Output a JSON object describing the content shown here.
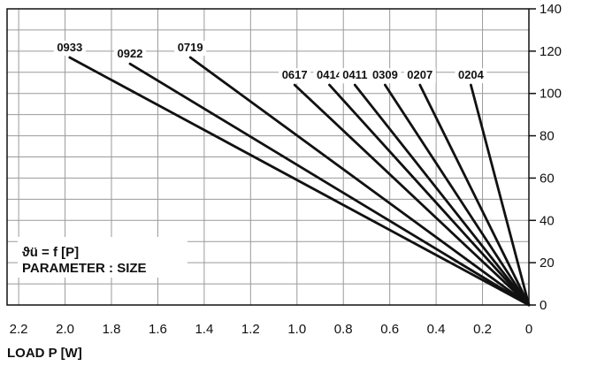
{
  "chart_data": {
    "type": "line",
    "xlabel": "LOAD  P [W]",
    "ylabel": "",
    "xlim": [
      2.25,
      0
    ],
    "ylim": [
      0,
      140
    ],
    "x_ticks": [
      "2.2",
      "2.0",
      "1.8",
      "1.6",
      "1.4",
      "1.2",
      "1.0",
      "0.8",
      "0.6",
      "0.4",
      "0.2",
      "0"
    ],
    "y_ticks": [
      "0",
      "20",
      "40",
      "60",
      "80",
      "100",
      "120",
      "140"
    ],
    "grid": true,
    "annotation": {
      "line1": "ϑü = f [P]",
      "line2": "PARAMETER : SIZE"
    },
    "series": [
      {
        "name": "0933",
        "points": [
          [
            0,
            0
          ],
          [
            1.98,
            117
          ]
        ]
      },
      {
        "name": "0922",
        "points": [
          [
            0,
            0
          ],
          [
            1.72,
            114
          ]
        ]
      },
      {
        "name": "0719",
        "points": [
          [
            0,
            0
          ],
          [
            1.46,
            117
          ]
        ]
      },
      {
        "name": "0617",
        "points": [
          [
            0,
            0
          ],
          [
            1.01,
            104
          ]
        ]
      },
      {
        "name": "0414",
        "points": [
          [
            0,
            0
          ],
          [
            0.86,
            104
          ]
        ]
      },
      {
        "name": "0411",
        "points": [
          [
            0,
            0
          ],
          [
            0.75,
            104
          ]
        ]
      },
      {
        "name": "0309",
        "points": [
          [
            0,
            0
          ],
          [
            0.62,
            104
          ]
        ]
      },
      {
        "name": "0207",
        "points": [
          [
            0,
            0
          ],
          [
            0.47,
            104
          ]
        ]
      },
      {
        "name": "0204",
        "points": [
          [
            0,
            0
          ],
          [
            0.25,
            104
          ]
        ]
      }
    ]
  }
}
